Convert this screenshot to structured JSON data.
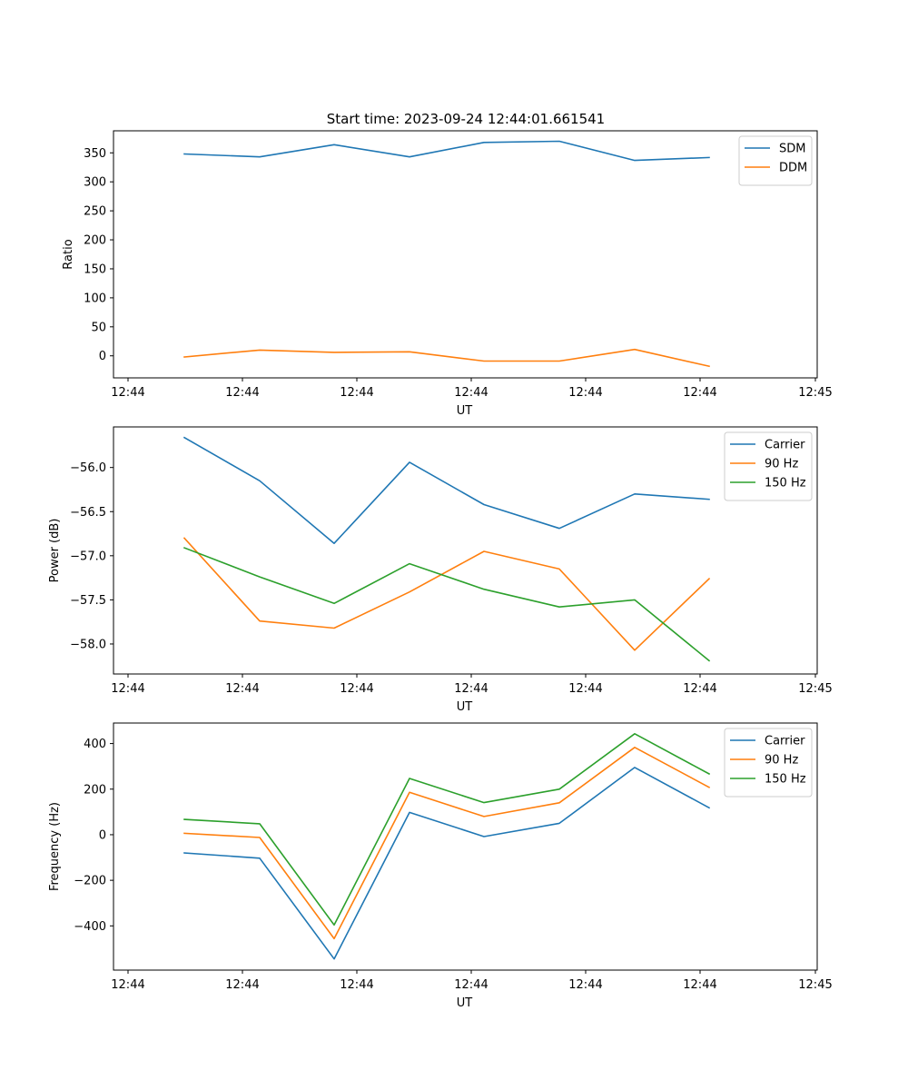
{
  "figure_title": "Start time: 2023-09-24 12:44:01.661541",
  "colors": {
    "c0": "#1f77b4",
    "c1": "#ff7f0e",
    "c2": "#2ca02c"
  },
  "chart_data": [
    {
      "type": "line",
      "title": "Start time: 2023-09-24 12:44:01.661541",
      "xlabel": "UT",
      "ylabel": "Ratio",
      "x_tick_labels": [
        "12:44",
        "12:44",
        "12:44",
        "12:44",
        "12:44",
        "12:44",
        "12:45"
      ],
      "y_ticks": [
        0,
        50,
        100,
        150,
        200,
        250,
        300,
        350
      ],
      "y_tick_labels": [
        "0",
        "50",
        "100",
        "150",
        "200",
        "250",
        "300",
        "350"
      ],
      "ylim": [
        -38,
        388
      ],
      "legend_position": "top-right",
      "series": [
        {
          "name": "SDM",
          "color": "#1f77b4",
          "values": [
            348,
            343,
            364,
            343,
            368,
            370,
            337,
            342
          ]
        },
        {
          "name": "DDM",
          "color": "#ff7f0e",
          "values": [
            -2,
            10,
            6,
            7,
            -9,
            -9,
            11,
            -18
          ]
        }
      ]
    },
    {
      "type": "line",
      "title": "",
      "xlabel": "UT",
      "ylabel": "Power (dB)",
      "x_tick_labels": [
        "12:44",
        "12:44",
        "12:44",
        "12:44",
        "12:44",
        "12:44",
        "12:45"
      ],
      "y_ticks": [
        -58.0,
        -57.5,
        -57.0,
        -56.5,
        -56.0
      ],
      "y_tick_labels": [
        "−58.0",
        "−57.5",
        "−57.0",
        "−56.5",
        "−56.0"
      ],
      "ylim": [
        -58.34,
        -55.54
      ],
      "legend_position": "top-right",
      "series": [
        {
          "name": "Carrier",
          "color": "#1f77b4",
          "values": [
            -55.66,
            -56.15,
            -56.86,
            -55.94,
            -56.42,
            -56.69,
            -56.3,
            -56.36
          ]
        },
        {
          "name": "90 Hz",
          "color": "#ff7f0e",
          "values": [
            -56.8,
            -57.74,
            -57.82,
            -57.41,
            -56.95,
            -57.15,
            -58.07,
            -57.26
          ]
        },
        {
          "name": "150 Hz",
          "color": "#2ca02c",
          "values": [
            -56.91,
            -57.24,
            -57.54,
            -57.09,
            -57.38,
            -57.58,
            -57.5,
            -58.19
          ]
        }
      ]
    },
    {
      "type": "line",
      "title": "",
      "xlabel": "UT",
      "ylabel": "Frequency (Hz)",
      "x_tick_labels": [
        "12:44",
        "12:44",
        "12:44",
        "12:44",
        "12:44",
        "12:44",
        "12:45"
      ],
      "y_ticks": [
        -400,
        -200,
        0,
        200,
        400
      ],
      "y_tick_labels": [
        "−400",
        "−200",
        "0",
        "200",
        "400"
      ],
      "ylim": [
        -594,
        490
      ],
      "legend_position": "top-right",
      "series": [
        {
          "name": "Carrier",
          "color": "#1f77b4",
          "values": [
            -80,
            -103,
            -545,
            98,
            -8,
            50,
            295,
            118
          ]
        },
        {
          "name": "90 Hz",
          "color": "#ff7f0e",
          "values": [
            6,
            -12,
            -456,
            186,
            80,
            140,
            383,
            208
          ]
        },
        {
          "name": "150 Hz",
          "color": "#2ca02c",
          "values": [
            67,
            48,
            -396,
            247,
            141,
            200,
            443,
            267
          ]
        }
      ]
    }
  ]
}
